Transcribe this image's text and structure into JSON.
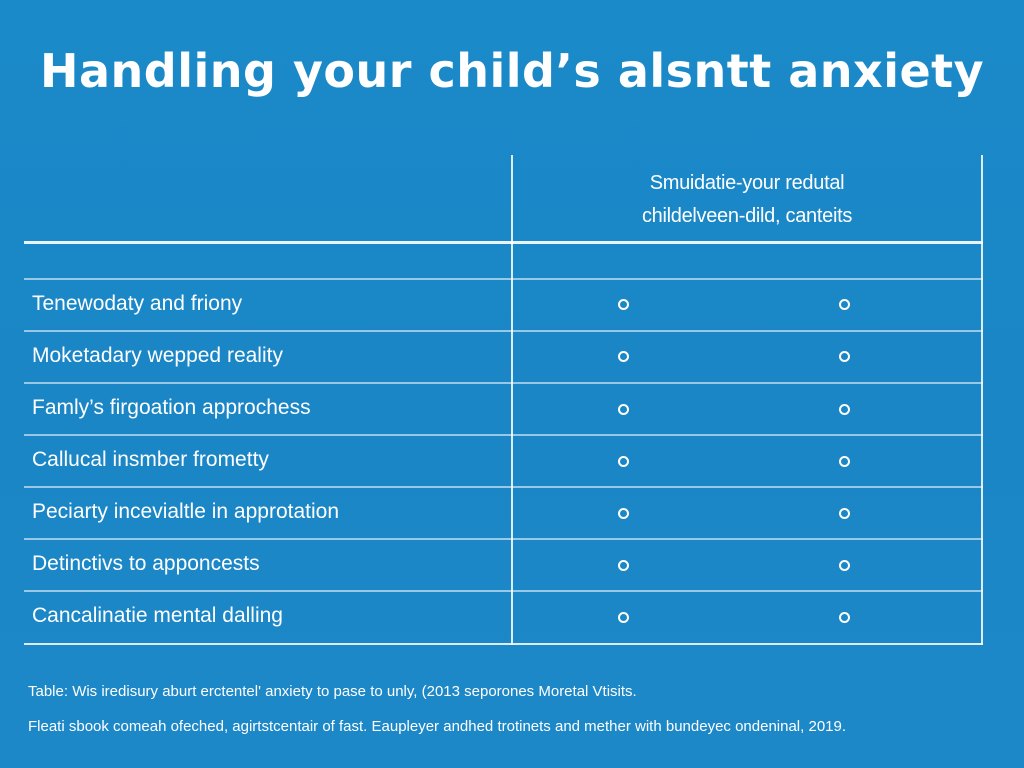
{
  "title": "Handling your child’s alsntt anxiety",
  "table": {
    "column_header_line1": "Smuidatie-your redutal",
    "column_header_line2": "childelveen-dild, canteits",
    "rows": [
      {
        "label": "Tenewodaty and friony",
        "marks": [
          "o",
          "o"
        ]
      },
      {
        "label": "Moketadary wepped reality",
        "marks": [
          "o",
          "o"
        ]
      },
      {
        "label": "Famly’s firgoation approchess",
        "marks": [
          "o",
          "o"
        ]
      },
      {
        "label": "Callucal insmber frometty",
        "marks": [
          "o",
          "o"
        ]
      },
      {
        "label": "Peciarty incevialtle in approtation",
        "marks": [
          "o",
          "o"
        ]
      },
      {
        "label": "Detinctivs to apponcests",
        "marks": [
          "o",
          "o"
        ]
      },
      {
        "label": "Cancalinatie mental dalling",
        "marks": [
          "o",
          "o"
        ]
      }
    ]
  },
  "footnotes": {
    "line1": "Table: Wis iredisury aburt erctentel' anxiety to pase to unly, (2013 seporones Moretal Vtisits.",
    "line2": "Fleati sbook comeah ofeched, agirtstcentair of fast. Eaupleyer andhed trotinets and mether with bundeyec ondeninal, 2019."
  },
  "colors": {
    "background": "#1b8ac9",
    "text": "#ffffff",
    "grid": "#ffffff"
  }
}
